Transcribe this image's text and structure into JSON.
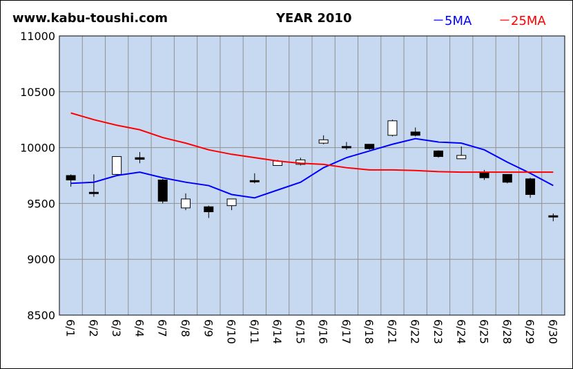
{
  "header": {
    "site": "www.kabu-toushi.com",
    "title": "YEAR 2010",
    "legend_5ma": "－5MA",
    "legend_25ma": "－25MA"
  },
  "colors": {
    "plot_bg": "#c6d9f1",
    "grid": "#909090",
    "ma5": "#0000ff",
    "ma25": "#ff0000",
    "candle_up": "#ffffff",
    "candle_down": "#000000"
  },
  "chart_data": {
    "type": "candlestick",
    "title": "YEAR 2010",
    "ylim": [
      8500,
      11000
    ],
    "yticks": [
      8500,
      9000,
      9500,
      10000,
      10500,
      11000
    ],
    "grid": true,
    "legend_position": "top-right",
    "categories": [
      "6/1",
      "6/2",
      "6/3",
      "6/4",
      "6/7",
      "6/8",
      "6/9",
      "6/10",
      "6/11",
      "6/14",
      "6/15",
      "6/16",
      "6/17",
      "6/18",
      "6/21",
      "6/22",
      "6/23",
      "6/24",
      "6/25",
      "6/28",
      "6/29",
      "6/30"
    ],
    "candles": [
      {
        "open": 9750,
        "close": 9710,
        "high": 9760,
        "low": 9650
      },
      {
        "open": 9600,
        "close": 9595,
        "high": 9760,
        "low": 9560
      },
      {
        "open": 9760,
        "close": 9920,
        "high": 9920,
        "low": 9760
      },
      {
        "open": 9910,
        "close": 9895,
        "high": 9960,
        "low": 9860
      },
      {
        "open": 9710,
        "close": 9520,
        "high": 9720,
        "low": 9500
      },
      {
        "open": 9460,
        "close": 9540,
        "high": 9590,
        "low": 9440
      },
      {
        "open": 9470,
        "close": 9425,
        "high": 9480,
        "low": 9370
      },
      {
        "open": 9480,
        "close": 9540,
        "high": 9540,
        "low": 9440
      },
      {
        "open": 9705,
        "close": 9700,
        "high": 9770,
        "low": 9680
      },
      {
        "open": 9840,
        "close": 9880,
        "high": 9890,
        "low": 9840
      },
      {
        "open": 9850,
        "close": 9890,
        "high": 9910,
        "low": 9840
      },
      {
        "open": 10040,
        "close": 10070,
        "high": 10110,
        "low": 10030
      },
      {
        "open": 10010,
        "close": 10000,
        "high": 10050,
        "low": 9980
      },
      {
        "open": 10030,
        "close": 9990,
        "high": 10030,
        "low": 9980
      },
      {
        "open": 10110,
        "close": 10240,
        "high": 10250,
        "low": 10100
      },
      {
        "open": 10140,
        "close": 10110,
        "high": 10180,
        "low": 10100
      },
      {
        "open": 9970,
        "close": 9920,
        "high": 9975,
        "low": 9910
      },
      {
        "open": 9900,
        "close": 9930,
        "high": 10010,
        "low": 9900
      },
      {
        "open": 9780,
        "close": 9730,
        "high": 9800,
        "low": 9710
      },
      {
        "open": 9760,
        "close": 9690,
        "high": 9760,
        "low": 9680
      },
      {
        "open": 9720,
        "close": 9580,
        "high": 9730,
        "low": 9550
      },
      {
        "open": 9390,
        "close": 9380,
        "high": 9410,
        "low": 9340
      }
    ],
    "series": [
      {
        "name": "5MA",
        "values": [
          9680,
          9690,
          9750,
          9780,
          9730,
          9690,
          9660,
          9580,
          9550,
          9620,
          9690,
          9820,
          9910,
          9970,
          10030,
          10080,
          10050,
          10040,
          9980,
          9870,
          9770,
          9660
        ]
      },
      {
        "name": "25MA",
        "values": [
          10310,
          10250,
          10200,
          10160,
          10090,
          10040,
          9980,
          9940,
          9910,
          9880,
          9860,
          9850,
          9820,
          9800,
          9800,
          9795,
          9785,
          9780,
          9780,
          9780,
          9780,
          9780
        ]
      }
    ]
  }
}
